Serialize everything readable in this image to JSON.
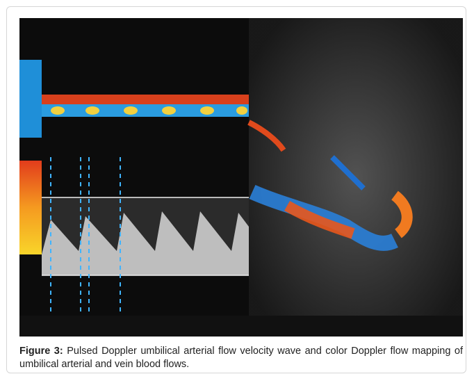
{
  "figure": {
    "label": "Figure 3:",
    "caption": "Pulsed Doppler umbilical arterial flow velocity wave and color Doppler flow mapping of umbilical arterial and vein blood flows."
  }
}
